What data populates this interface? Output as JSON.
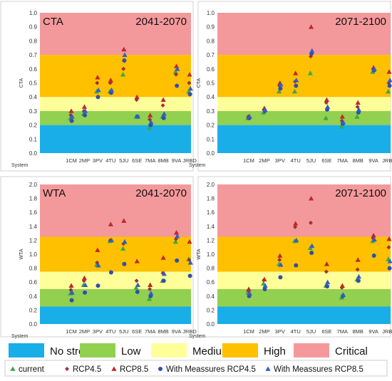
{
  "zones": [
    {
      "label": "No stress",
      "color": "#1aaee8"
    },
    {
      "label": "Low",
      "color": "#92d050"
    },
    {
      "label": "Medium",
      "color": "#ffff99"
    },
    {
      "label": "High",
      "color": "#ffc000"
    },
    {
      "label": "Critical",
      "color": "#f4999b"
    }
  ],
  "markers": [
    {
      "label": "current",
      "shape": "triangle",
      "color": "#3aa84a"
    },
    {
      "label": "RCP4.5",
      "shape": "diamond",
      "color": "#a0303a"
    },
    {
      "label": "RCP8.5",
      "shape": "triangle",
      "color": "#c0282a"
    },
    {
      "label": "With Meassures RCP4.5",
      "shape": "circle",
      "color": "#2f4fb0"
    },
    {
      "label": "With Meassures RCP8.5",
      "shape": "triangle",
      "color": "#2f5fc8"
    }
  ],
  "chart_data": [
    {
      "type": "scatter",
      "variable": "CTA",
      "period": "2041-2070",
      "show_variable_label": true,
      "ylabel": "CTA",
      "xlabel": "System",
      "ylim": [
        0,
        1.0
      ],
      "yticks": [
        "0.0",
        "0.1",
        "0.2",
        "0.3",
        "0.4",
        "0.5",
        "0.6",
        "0.7",
        "0.8",
        "0.9",
        "1.0"
      ],
      "zone_bounds": [
        0,
        0.2,
        0.3,
        0.4,
        0.7,
        1.0
      ],
      "categories": [
        "1CM",
        "2MP",
        "3PV",
        "4TU",
        "5JU",
        "6SE",
        "7MA",
        "8MB",
        "9VA",
        "JRBD"
      ],
      "series": [
        {
          "name": "current",
          "values": [
            0.25,
            0.28,
            0.44,
            0.44,
            0.56,
            0.26,
            0.18,
            0.26,
            0.58,
            0.44
          ]
        },
        {
          "name": "RCP4.5",
          "values": [
            0.27,
            0.3,
            0.5,
            0.5,
            0.6,
            0.38,
            0.24,
            0.34,
            0.56,
            0.5
          ]
        },
        {
          "name": "RCP8.5",
          "values": [
            0.3,
            0.33,
            0.54,
            0.52,
            0.74,
            0.4,
            0.27,
            0.38,
            0.62,
            0.56
          ]
        },
        {
          "name": "With Meassures RCP4.5",
          "values": [
            0.23,
            0.27,
            0.4,
            0.43,
            0.66,
            0.26,
            0.2,
            0.25,
            0.48,
            0.42
          ]
        },
        {
          "name": "With Meassures RCP8.5",
          "values": [
            0.26,
            0.3,
            0.45,
            0.45,
            0.7,
            0.26,
            0.22,
            0.28,
            0.6,
            0.46
          ]
        }
      ]
    },
    {
      "type": "scatter",
      "variable": "CTA",
      "period": "2071-2100",
      "show_variable_label": false,
      "ylabel": "CTA",
      "xlabel": "System",
      "ylim": [
        0,
        1.0
      ],
      "yticks": [
        "0.0",
        "0.1",
        "0.2",
        "0.3",
        "0.4",
        "0.5",
        "0.6",
        "0.7",
        "0.8",
        "0.9",
        "1.0"
      ],
      "zone_bounds": [
        0,
        0.2,
        0.3,
        0.4,
        0.7,
        1.0
      ],
      "categories": [
        "1CM",
        "2MP",
        "3PV",
        "4TU",
        "5JU",
        "6SE",
        "7MA",
        "8MB",
        "9VA",
        "JRBD"
      ],
      "series": [
        {
          "name": "current",
          "values": [
            0.25,
            0.29,
            0.44,
            0.44,
            0.57,
            0.25,
            0.19,
            0.26,
            0.58,
            0.44
          ]
        },
        {
          "name": "RCP4.5",
          "values": [
            0.26,
            0.31,
            0.48,
            0.51,
            0.69,
            0.36,
            0.23,
            0.33,
            0.6,
            0.5
          ]
        },
        {
          "name": "RCP8.5",
          "values": [
            0.26,
            0.32,
            0.5,
            0.57,
            0.9,
            0.38,
            0.26,
            0.36,
            0.61,
            0.58
          ]
        },
        {
          "name": "With Meassures RCP4.5",
          "values": [
            0.25,
            0.3,
            0.46,
            0.48,
            0.71,
            0.31,
            0.21,
            0.29,
            0.59,
            0.48
          ]
        },
        {
          "name": "With Meassures RCP8.5",
          "values": [
            0.26,
            0.31,
            0.49,
            0.52,
            0.73,
            0.33,
            0.22,
            0.31,
            0.6,
            0.52
          ]
        }
      ]
    },
    {
      "type": "scatter",
      "variable": "WTA",
      "period": "2041-2070",
      "show_variable_label": true,
      "ylabel": "WTA",
      "xlabel": "System",
      "ylim": [
        0,
        2.0
      ],
      "yticks": [
        "0.0",
        "0.2",
        "0.4",
        "0.6",
        "0.8",
        "1.0",
        "1.2",
        "1.4",
        "1.6",
        "1.8",
        "2.0"
      ],
      "zone_bounds": [
        0,
        0.25,
        0.5,
        0.75,
        1.25,
        2.0
      ],
      "categories": [
        "1CM",
        "2MP",
        "3PV",
        "4TU",
        "5JU",
        "6SE",
        "7MA",
        "8MB",
        "9VA",
        "JRBD"
      ],
      "series": [
        {
          "name": "current",
          "values": [
            0.44,
            0.56,
            0.85,
            1.19,
            1.08,
            0.52,
            0.36,
            0.62,
            1.18,
            0.93
          ]
        },
        {
          "name": "RCP4.5",
          "values": [
            0.49,
            0.62,
            0.88,
            1.2,
            1.15,
            0.62,
            0.5,
            0.73,
            1.22,
            0.92
          ]
        },
        {
          "name": "RCP8.5",
          "values": [
            0.55,
            0.66,
            1.06,
            1.43,
            1.48,
            0.9,
            0.56,
            0.95,
            1.31,
            1.18
          ]
        },
        {
          "name": "With Meassures RCP4.5",
          "values": [
            0.34,
            0.45,
            0.55,
            0.74,
            0.86,
            0.46,
            0.4,
            0.62,
            0.91,
            0.69
          ]
        },
        {
          "name": "With Meassures RCP8.5",
          "values": [
            0.45,
            0.56,
            0.84,
            1.2,
            1.18,
            0.56,
            0.44,
            0.72,
            1.26,
            0.88
          ]
        }
      ]
    },
    {
      "type": "scatter",
      "variable": "WTA",
      "period": "2071-2100",
      "show_variable_label": false,
      "ylabel": "WTA",
      "xlabel": "System",
      "ylim": [
        0,
        2.0
      ],
      "yticks": [
        "0.0",
        "0.2",
        "0.4",
        "0.6",
        "0.8",
        "1.0",
        "1.2",
        "1.4",
        "1.6",
        "1.8",
        "2.0"
      ],
      "zone_bounds": [
        0,
        0.25,
        0.5,
        0.75,
        1.25,
        2.0
      ],
      "categories": [
        "1CM",
        "2MP",
        "3PV",
        "4TU",
        "5JU",
        "6SE",
        "7MA",
        "8MB",
        "9VA",
        "JRBD"
      ],
      "series": [
        {
          "name": "current",
          "values": [
            0.45,
            0.58,
            0.86,
            1.19,
            1.09,
            0.55,
            0.38,
            0.64,
            1.19,
            0.93
          ]
        },
        {
          "name": "RCP4.5",
          "values": [
            0.48,
            0.63,
            0.92,
            1.39,
            1.45,
            0.75,
            0.52,
            0.78,
            1.23,
            1.1
          ]
        },
        {
          "name": "RCP8.5",
          "values": [
            0.5,
            0.64,
            0.98,
            1.44,
            1.8,
            0.86,
            0.55,
            0.92,
            1.27,
            1.22
          ]
        },
        {
          "name": "With Meassures RCP4.5",
          "values": [
            0.4,
            0.5,
            0.67,
            0.84,
            1.02,
            0.54,
            0.4,
            0.62,
            0.98,
            0.8
          ]
        },
        {
          "name": "With Meassures RCP8.5",
          "values": [
            0.44,
            0.55,
            0.85,
            1.2,
            1.12,
            0.6,
            0.42,
            0.68,
            1.21,
            0.9
          ]
        }
      ]
    }
  ]
}
